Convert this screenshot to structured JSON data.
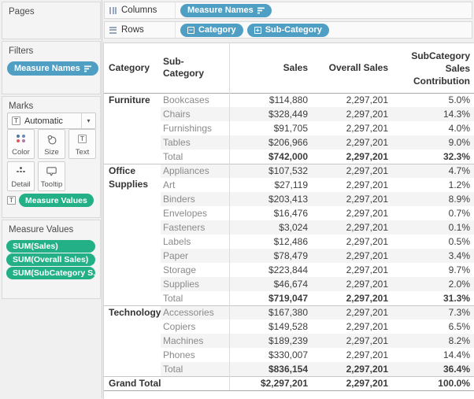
{
  "colors": {
    "pill_blue": "#4f9fc4",
    "pill_green": "#23b086",
    "band": "#f4f4f4",
    "color_icon_dots": [
      "#4e79a7",
      "#6a89b5",
      "#e15759",
      "#b07aa1"
    ]
  },
  "sidebar": {
    "pages": {
      "title": "Pages"
    },
    "filters": {
      "title": "Filters",
      "pills": [
        {
          "label": "Measure Names",
          "right_icon": "sort-icon"
        }
      ]
    },
    "marks": {
      "title": "Marks",
      "mark_type_label": "Automatic",
      "mark_type_icon": "text-box-icon",
      "buttons": [
        {
          "label": "Color",
          "icon": "color-dots-icon"
        },
        {
          "label": "Size",
          "icon": "size-circles-icon"
        },
        {
          "label": "Text",
          "icon": "text-box-icon"
        },
        {
          "label": "Detail",
          "icon": "detail-dots-icon"
        },
        {
          "label": "Tooltip",
          "icon": "tooltip-bubble-icon"
        }
      ],
      "encoding_pills": [
        {
          "label": "Measure Values",
          "left_icon": "text-box-icon"
        }
      ]
    },
    "measure_values": {
      "title": "Measure Values",
      "pills": [
        "SUM(Sales)",
        "SUM(Overall Sales)",
        "SUM(SubCategory S.."
      ]
    }
  },
  "shelves": {
    "columns": {
      "label": "Columns",
      "icon": "columns-icon",
      "pills": [
        {
          "label": "Measure Names",
          "right_icon": "sort-icon"
        }
      ]
    },
    "rows": {
      "label": "Rows",
      "icon": "rows-icon",
      "pills": [
        {
          "label": "Category",
          "left_icon": "minus-box-icon"
        },
        {
          "label": "Sub-Category",
          "left_icon": "plus-box-icon"
        }
      ]
    }
  },
  "table": {
    "headers": {
      "category": "Category",
      "sub_category": "Sub-Category",
      "sales": "Sales",
      "overall": "Overall Sales",
      "contribution": "SubCategory Sales Contribution"
    },
    "groups": [
      {
        "category": "Furniture",
        "rows": [
          [
            "Bookcases",
            "$114,880",
            "2,297,201",
            "5.0%"
          ],
          [
            "Chairs",
            "$328,449",
            "2,297,201",
            "14.3%"
          ],
          [
            "Furnishings",
            "$91,705",
            "2,297,201",
            "4.0%"
          ],
          [
            "Tables",
            "$206,966",
            "2,297,201",
            "9.0%"
          ],
          [
            "Total",
            "$742,000",
            "2,297,201",
            "32.3%"
          ]
        ]
      },
      {
        "category": "Office Supplies",
        "rows": [
          [
            "Appliances",
            "$107,532",
            "2,297,201",
            "4.7%"
          ],
          [
            "Art",
            "$27,119",
            "2,297,201",
            "1.2%"
          ],
          [
            "Binders",
            "$203,413",
            "2,297,201",
            "8.9%"
          ],
          [
            "Envelopes",
            "$16,476",
            "2,297,201",
            "0.7%"
          ],
          [
            "Fasteners",
            "$3,024",
            "2,297,201",
            "0.1%"
          ],
          [
            "Labels",
            "$12,486",
            "2,297,201",
            "0.5%"
          ],
          [
            "Paper",
            "$78,479",
            "2,297,201",
            "3.4%"
          ],
          [
            "Storage",
            "$223,844",
            "2,297,201",
            "9.7%"
          ],
          [
            "Supplies",
            "$46,674",
            "2,297,201",
            "2.0%"
          ],
          [
            "Total",
            "$719,047",
            "2,297,201",
            "31.3%"
          ]
        ]
      },
      {
        "category": "Technology",
        "rows": [
          [
            "Accessories",
            "$167,380",
            "2,297,201",
            "7.3%"
          ],
          [
            "Copiers",
            "$149,528",
            "2,297,201",
            "6.5%"
          ],
          [
            "Machines",
            "$189,239",
            "2,297,201",
            "8.2%"
          ],
          [
            "Phones",
            "$330,007",
            "2,297,201",
            "14.4%"
          ],
          [
            "Total",
            "$836,154",
            "2,297,201",
            "36.4%"
          ]
        ]
      }
    ],
    "grand_total": {
      "label": "Grand Total",
      "sales": "$2,297,201",
      "overall": "2,297,201",
      "contribution": "100.0%"
    }
  }
}
